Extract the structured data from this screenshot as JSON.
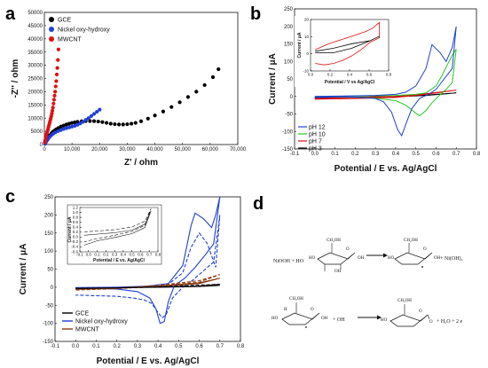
{
  "panels": {
    "a": "a",
    "b": "b",
    "c": "c",
    "d": "d"
  },
  "chart_data": [
    {
      "type": "scatter",
      "xlabel": "Z' / ohm",
      "ylabel": "-Z'' / ohm",
      "xlim": [
        0,
        70000
      ],
      "ylim": [
        0,
        50000
      ],
      "xticks": [
        "0",
        "10,000",
        "20,000",
        "30,000",
        "40,000",
        "50,000",
        "60,000",
        "70,000"
      ],
      "yticks": [
        "0",
        "5000",
        "10000",
        "15000",
        "20000",
        "25000",
        "30000",
        "35000",
        "40000",
        "45000",
        "50000"
      ],
      "legend": "top-left",
      "colors": {
        "GCE": "#000000",
        "Nickel oxy-hydroxy": "#1f3fd6",
        "MWCNT": "#e01010"
      },
      "series": [
        {
          "name": "GCE",
          "x": [
            200,
            500,
            800,
            1200,
            1600,
            2000,
            2500,
            3000,
            3600,
            4200,
            5000,
            6000,
            7000,
            8000,
            9000,
            10000,
            11000,
            12000,
            13500,
            15000,
            16500,
            18000,
            19500,
            21000,
            22500,
            24000,
            25500,
            27000,
            28500,
            30000,
            31500,
            33000,
            35000,
            37500,
            40000,
            43000,
            46000,
            49000,
            52000,
            55000,
            58000,
            61000,
            63000
          ],
          "y": [
            300,
            900,
            1500,
            2200,
            2900,
            3500,
            4100,
            4700,
            5200,
            5700,
            6200,
            6800,
            7200,
            7600,
            7900,
            8200,
            8400,
            8600,
            8800,
            8900,
            8900,
            8850,
            8700,
            8500,
            8200,
            7900,
            7700,
            7600,
            7600,
            7700,
            7900,
            8200,
            8800,
            9800,
            11000,
            12500,
            14200,
            16000,
            18000,
            20000,
            22500,
            25500,
            28500
          ]
        },
        {
          "name": "Nickel oxy-hydroxy",
          "x": [
            200,
            500,
            800,
            1200,
            1600,
            2000,
            2600,
            3200,
            4000,
            5000,
            6000,
            7000,
            8000,
            9000,
            10000,
            11000,
            12000,
            13000,
            14000,
            15000,
            16000,
            17000,
            18000,
            19000,
            20000
          ],
          "y": [
            300,
            800,
            1300,
            1900,
            2500,
            3000,
            3600,
            4100,
            4600,
            5100,
            5500,
            5900,
            6200,
            6500,
            6800,
            7100,
            7500,
            8000,
            8600,
            9300,
            10000,
            10800,
            11600,
            12400,
            13200
          ]
        },
        {
          "name": "MWCNT",
          "x": [
            150,
            300,
            500,
            700,
            900,
            1100,
            1300,
            1500,
            1700,
            1900,
            2100,
            2300,
            2500,
            2700,
            2900,
            3100,
            3300,
            3500,
            3700,
            3900,
            4100,
            4300,
            4500,
            4700,
            4900,
            5100
          ],
          "y": [
            800,
            1600,
            2500,
            3400,
            4200,
            5000,
            5800,
            6600,
            7400,
            8200,
            9000,
            9800,
            10700,
            11700,
            12800,
            14000,
            15500,
            17000,
            18500,
            20000,
            22000,
            24000,
            26500,
            29000,
            32000,
            36000
          ]
        }
      ]
    },
    {
      "type": "line",
      "xlabel": "Potential / E vs. Ag/AgCl",
      "ylabel": "Current / μA",
      "xlim": [
        -0.1,
        0.8
      ],
      "ylim": [
        -150,
        250
      ],
      "xticks": [
        "-0.1",
        "0.0",
        "0.1",
        "0.2",
        "0.3",
        "0.4",
        "0.5",
        "0.6",
        "0.7",
        "0.8"
      ],
      "yticks": [
        "-150",
        "-100",
        "-50",
        "0",
        "50",
        "100",
        "150",
        "200",
        "250"
      ],
      "legend": "bottom-left",
      "colors": {
        "pH 12": "#1f3fd6",
        "pH 10": "#22cc22",
        "pH 7": "#e01010",
        "pH 3": "#000000"
      },
      "series": [
        {
          "name": "pH 12",
          "x": [
            0.0,
            0.1,
            0.2,
            0.3,
            0.4,
            0.45,
            0.5,
            0.55,
            0.58,
            0.62,
            0.65,
            0.68,
            0.7,
            0.68,
            0.64,
            0.6,
            0.56,
            0.52,
            0.48,
            0.45,
            0.43,
            0.41,
            0.38,
            0.34,
            0.3,
            0.2,
            0.1,
            0.0
          ],
          "y": [
            0,
            1,
            2,
            3,
            6,
            12,
            30,
            80,
            148,
            125,
            100,
            140,
            200,
            80,
            50,
            20,
            5,
            -5,
            -35,
            -80,
            -112,
            -95,
            -45,
            -15,
            -6,
            -2,
            -1,
            -3
          ]
        },
        {
          "name": "pH 10",
          "x": [
            0.0,
            0.2,
            0.4,
            0.5,
            0.55,
            0.6,
            0.63,
            0.66,
            0.68,
            0.7,
            0.68,
            0.65,
            0.62,
            0.58,
            0.55,
            0.52,
            0.5,
            0.45,
            0.4,
            0.3,
            0.2,
            0.0
          ],
          "y": [
            0,
            1,
            3,
            6,
            10,
            30,
            60,
            95,
            118,
            135,
            40,
            20,
            5,
            -18,
            -40,
            -55,
            -48,
            -25,
            -12,
            -5,
            -2,
            -1
          ]
        },
        {
          "name": "pH 7",
          "x": [
            0.0,
            0.2,
            0.4,
            0.55,
            0.7,
            0.55,
            0.4,
            0.2,
            0.0
          ],
          "y": [
            -6,
            -3,
            0,
            8,
            18,
            6,
            -3,
            -6,
            -8
          ]
        },
        {
          "name": "pH 3",
          "x": [
            0.0,
            0.2,
            0.4,
            0.55,
            0.7,
            0.55,
            0.4,
            0.2,
            0.0
          ],
          "y": [
            -4,
            -2,
            0,
            4,
            10,
            3,
            -1,
            -3,
            -5
          ]
        }
      ],
      "inset": {
        "xlabel": "Potential / V vs Ag/AgCl",
        "ylabel": "Current / μA",
        "xlim": [
          -0.05,
          0.8
        ],
        "ylim": [
          -12,
          22
        ],
        "xticks": [
          "0.0",
          "0.2",
          "0.4",
          "0.6",
          "0.8"
        ],
        "yticks": [
          "-10",
          "0",
          "10",
          "20"
        ],
        "series": [
          {
            "name": "red",
            "x": [
              0.0,
              0.15,
              0.3,
              0.45,
              0.55,
              0.62,
              0.7,
              0.7,
              0.6,
              0.5,
              0.4,
              0.3,
              0.2,
              0.1,
              0.0
            ],
            "y": [
              2,
              6,
              9,
              12,
              14,
              16,
              20,
              10,
              7,
              2,
              -2,
              -5,
              -7,
              -8,
              -7
            ]
          },
          {
            "name": "black",
            "x": [
              0.0,
              0.2,
              0.4,
              0.6,
              0.7,
              0.6,
              0.4,
              0.2,
              0.0
            ],
            "y": [
              1,
              3,
              6,
              8,
              11,
              8,
              3,
              0,
              0
            ]
          }
        ]
      }
    },
    {
      "type": "line",
      "xlabel": "Potential / E vs. Ag/AgCl",
      "ylabel": "Current / μA",
      "xlim": [
        -0.1,
        0.8
      ],
      "ylim": [
        -150,
        250
      ],
      "xticks": [
        "-0.1",
        "0.0",
        "0.1",
        "0.2",
        "0.3",
        "0.4",
        "0.5",
        "0.6",
        "0.7",
        "0.8"
      ],
      "yticks": [
        "-150",
        "-100",
        "-50",
        "0",
        "50",
        "100",
        "150",
        "200",
        "250"
      ],
      "legend": "bottom-left",
      "colors": {
        "GCE": "#000000",
        "Nickel oxy-hydroxy": "#1f3fd6",
        "MWCNT": "#8b3a10"
      },
      "series": [
        {
          "name": "GCE",
          "x": [
            0.0,
            0.2,
            0.4,
            0.6,
            0.7,
            0.6,
            0.4,
            0.2,
            0.0
          ],
          "y": [
            -2,
            -1,
            0,
            2,
            5,
            2,
            0,
            -1,
            -2
          ]
        },
        {
          "name": "Nickel oxy-hydroxy",
          "x": [
            0.0,
            0.2,
            0.35,
            0.45,
            0.52,
            0.56,
            0.58,
            0.62,
            0.66,
            0.68,
            0.7,
            0.67,
            0.63,
            0.58,
            0.53,
            0.48,
            0.45,
            0.43,
            0.41,
            0.39,
            0.36,
            0.3,
            0.2,
            0.0
          ],
          "y": [
            -1,
            0,
            3,
            10,
            60,
            170,
            205,
            190,
            165,
            200,
            250,
            120,
            90,
            55,
            25,
            5,
            -40,
            -95,
            -100,
            -60,
            -30,
            -12,
            -5,
            -3
          ]
        },
        {
          "name": "Nickel oxy-hydroxy (dashed)",
          "x": [
            0.0,
            0.2,
            0.35,
            0.45,
            0.52,
            0.56,
            0.6,
            0.64,
            0.68,
            0.7,
            0.67,
            0.62,
            0.57,
            0.52,
            0.47,
            0.44,
            0.42,
            0.4,
            0.37,
            0.33,
            0.28,
            0.2,
            0.0
          ],
          "y": [
            -3,
            -1,
            2,
            8,
            40,
            110,
            150,
            120,
            55,
            200,
            70,
            45,
            20,
            0,
            -30,
            -75,
            -85,
            -70,
            -45,
            -35,
            -30,
            -25,
            -22
          ]
        },
        {
          "name": "MWCNT",
          "x": [
            0.0,
            0.2,
            0.4,
            0.6,
            0.7,
            0.6,
            0.4,
            0.2,
            0.0
          ],
          "y": [
            -4,
            -2,
            3,
            12,
            25,
            10,
            2,
            -3,
            -6
          ]
        },
        {
          "name": "MWCNT (dashed)",
          "x": [
            0.0,
            0.2,
            0.4,
            0.6,
            0.7,
            0.6,
            0.4,
            0.2,
            0.0
          ],
          "y": [
            -6,
            -3,
            5,
            18,
            35,
            14,
            3,
            -4,
            -8
          ]
        },
        {
          "name": "GCE (dashed)",
          "x": [
            0.0,
            0.3,
            0.6,
            0.7,
            0.4,
            0.0
          ],
          "y": [
            -3,
            -1,
            3,
            8,
            1,
            -4
          ]
        }
      ],
      "inset": {
        "xlabel": "Potential / E vs. Ag/AgCl",
        "ylabel": "Current / μA",
        "xlim": [
          -0.1,
          0.8
        ],
        "ylim": [
          -0.8,
          1.2
        ],
        "xticks": [
          "-0.1",
          "0.0",
          "0.1",
          "0.2",
          "0.3",
          "0.4",
          "0.5",
          "0.6",
          "0.7",
          "0.8"
        ],
        "yticks": [
          "-0.6",
          "-0.4",
          "-0.2",
          "0.0",
          "0.2",
          "0.4",
          "0.6",
          "0.8",
          "1.0",
          "1.2"
        ],
        "series": [
          {
            "name": "solid",
            "dashed": false,
            "x": [
              -0.05,
              0.1,
              0.3,
              0.5,
              0.65,
              0.72,
              0.65,
              0.5,
              0.3,
              0.1,
              -0.05
            ],
            "y": [
              -0.05,
              0.0,
              0.06,
              0.18,
              0.45,
              1.05,
              0.3,
              0.02,
              -0.15,
              -0.3,
              -0.5
            ]
          },
          {
            "name": "dashed",
            "dashed": true,
            "x": [
              -0.05,
              0.1,
              0.3,
              0.5,
              0.65,
              0.72,
              0.65,
              0.5,
              0.3,
              0.1,
              -0.05
            ],
            "y": [
              0.1,
              0.14,
              0.2,
              0.32,
              0.58,
              1.15,
              0.4,
              0.12,
              -0.05,
              -0.2,
              -0.35
            ]
          }
        ]
      }
    }
  ],
  "scheme": {
    "r1_reactant": "NiOOH + HO",
    "r1_product": "+ Ni(OH)₂",
    "r2_plus_oh": "+ OH",
    "r2_product": "+ H₂O + 2 e",
    "labels": {
      "ch2oh": "CH₂OH",
      "oh": "OH",
      "ho": "HO",
      "h": "H",
      "o": "O"
    }
  }
}
